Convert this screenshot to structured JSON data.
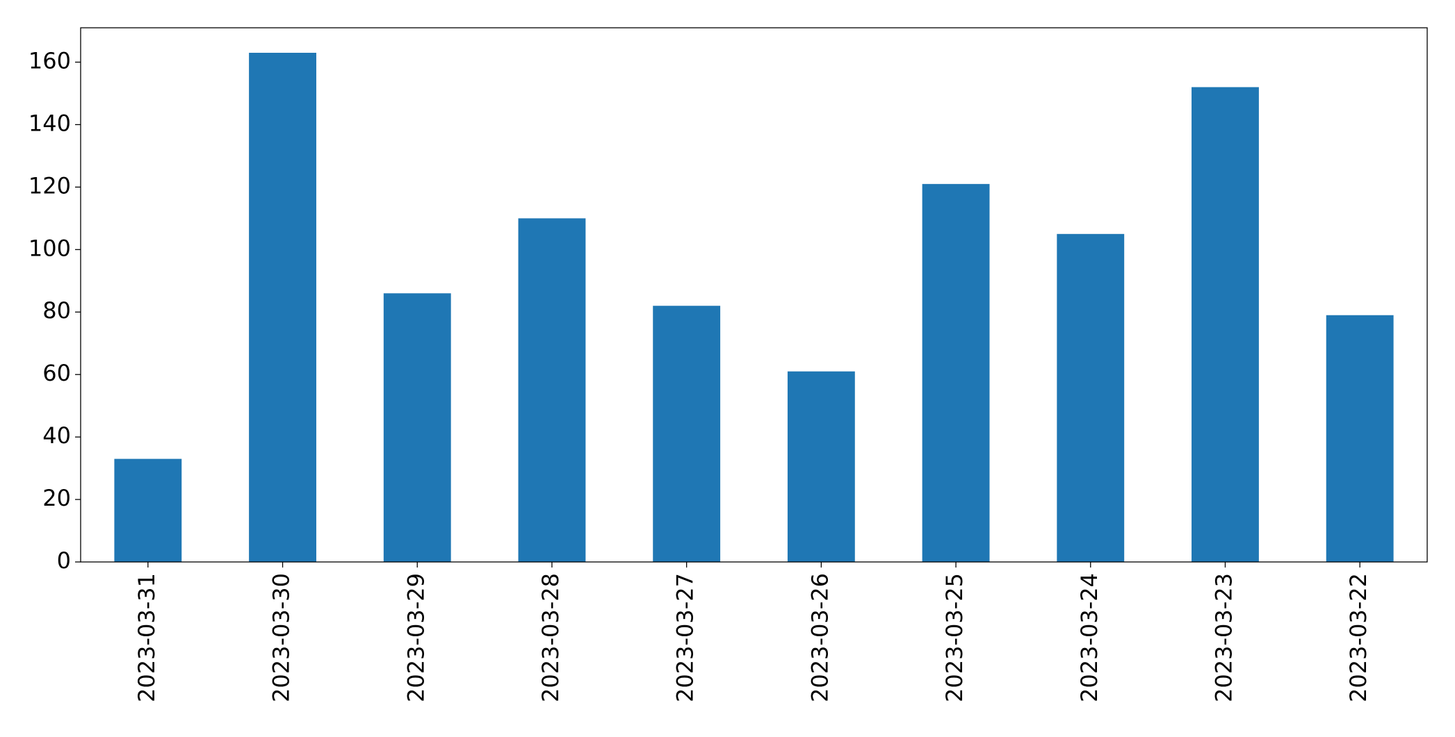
{
  "chart_data": {
    "type": "bar",
    "categories": [
      "2023-03-31",
      "2023-03-30",
      "2023-03-29",
      "2023-03-28",
      "2023-03-27",
      "2023-03-26",
      "2023-03-25",
      "2023-03-24",
      "2023-03-23",
      "2023-03-22"
    ],
    "values": [
      33,
      163,
      86,
      110,
      82,
      61,
      121,
      105,
      152,
      79
    ],
    "color": "#1f77b4",
    "ylim": [
      0,
      171
    ],
    "yticks": [
      0,
      20,
      40,
      60,
      80,
      100,
      120,
      140,
      160
    ],
    "grid": false
  }
}
